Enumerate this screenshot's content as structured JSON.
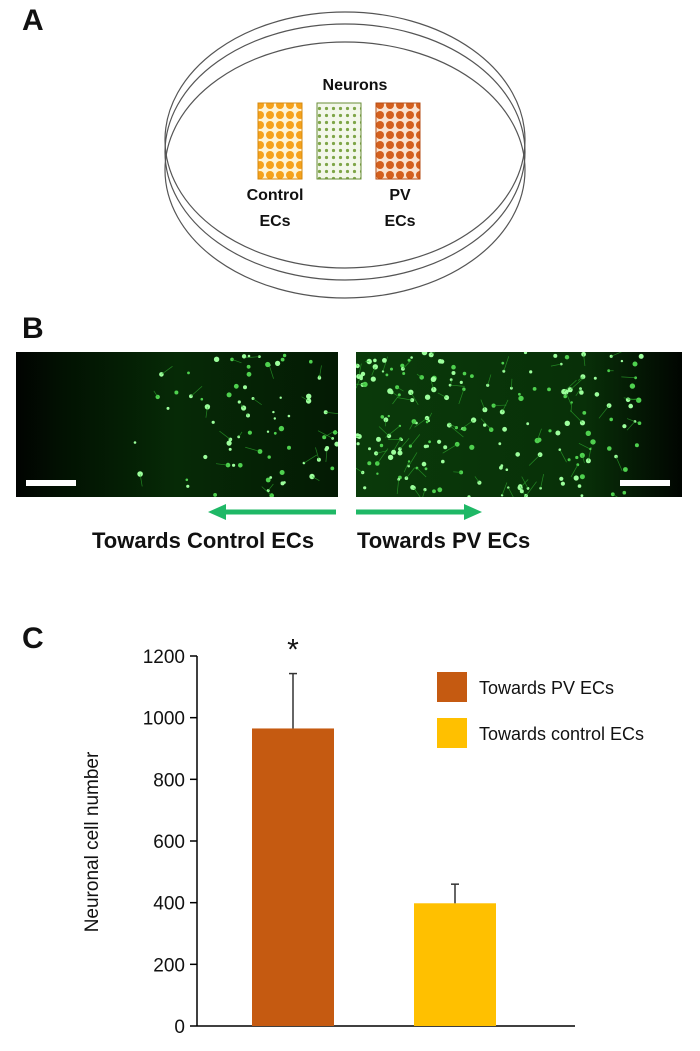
{
  "panels": {
    "a": "A",
    "b": "B",
    "c": "C"
  },
  "panel_a": {
    "neurons_label": "Neurons",
    "control_label_line1": "Control",
    "control_label_line2": "ECs",
    "pv_label_line1": "PV",
    "pv_label_line2": "ECs",
    "colors": {
      "control": "#f6a21c",
      "neurons": "#7ea547",
      "pv": "#d4601e"
    }
  },
  "panel_b": {
    "left_caption": "Towards  Control  ECs",
    "right_caption": "Towards  PV  ECs",
    "arrow_color": "#1fb866",
    "image_left": "micrograph-towards-control-ecs",
    "image_right": "micrograph-towards-pv-ecs"
  },
  "chart_data": {
    "type": "bar",
    "ylabel": "Neuronal cell number",
    "ylim": [
      0,
      1200
    ],
    "yticks": [
      0,
      200,
      400,
      600,
      800,
      1000,
      1200
    ],
    "categories": [
      "Towards PV ECs",
      "Towards control ECs"
    ],
    "values": [
      965,
      398
    ],
    "errors": [
      178,
      62
    ],
    "colors": [
      "#c55a11",
      "#ffc000"
    ],
    "annotations": [
      "*",
      ""
    ],
    "legend": [
      "Towards PV ECs",
      "Towards control ECs"
    ],
    "legend_position": "top-right"
  }
}
